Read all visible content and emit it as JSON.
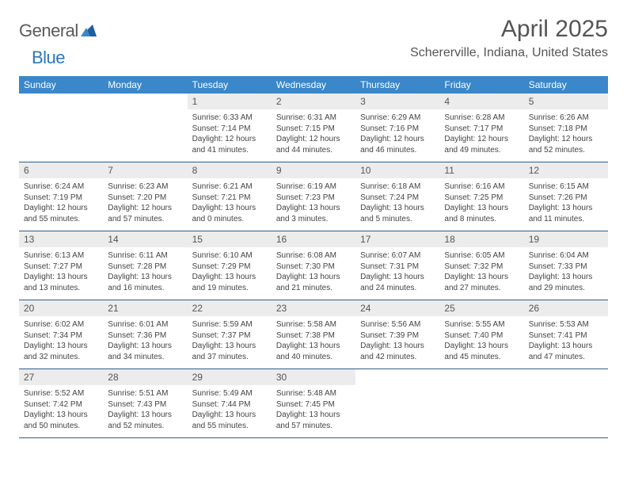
{
  "brand": {
    "word1": "General",
    "word2": "Blue",
    "word1_color": "#5a5a5a",
    "word2_color": "#2a77bb",
    "mark_color": "#1f5fa0"
  },
  "title": "April 2025",
  "location": "Schererville, Indiana, United States",
  "colors": {
    "header_bg": "#3a87c9",
    "header_text": "#ffffff",
    "daynum_bg": "#ececec",
    "daynum_text": "#555555",
    "body_text": "#444444",
    "rule": "#2f5f8a",
    "page_bg": "#ffffff"
  },
  "fonts": {
    "title_size": 30,
    "location_size": 16,
    "dayheader_size": 12,
    "daynum_size": 12,
    "cell_size": 10
  },
  "day_names": [
    "Sunday",
    "Monday",
    "Tuesday",
    "Wednesday",
    "Thursday",
    "Friday",
    "Saturday"
  ],
  "weeks": [
    [
      null,
      null,
      {
        "n": "1",
        "sunrise": "Sunrise: 6:33 AM",
        "sunset": "Sunset: 7:14 PM",
        "daylight": "Daylight: 12 hours and 41 minutes."
      },
      {
        "n": "2",
        "sunrise": "Sunrise: 6:31 AM",
        "sunset": "Sunset: 7:15 PM",
        "daylight": "Daylight: 12 hours and 44 minutes."
      },
      {
        "n": "3",
        "sunrise": "Sunrise: 6:29 AM",
        "sunset": "Sunset: 7:16 PM",
        "daylight": "Daylight: 12 hours and 46 minutes."
      },
      {
        "n": "4",
        "sunrise": "Sunrise: 6:28 AM",
        "sunset": "Sunset: 7:17 PM",
        "daylight": "Daylight: 12 hours and 49 minutes."
      },
      {
        "n": "5",
        "sunrise": "Sunrise: 6:26 AM",
        "sunset": "Sunset: 7:18 PM",
        "daylight": "Daylight: 12 hours and 52 minutes."
      }
    ],
    [
      {
        "n": "6",
        "sunrise": "Sunrise: 6:24 AM",
        "sunset": "Sunset: 7:19 PM",
        "daylight": "Daylight: 12 hours and 55 minutes."
      },
      {
        "n": "7",
        "sunrise": "Sunrise: 6:23 AM",
        "sunset": "Sunset: 7:20 PM",
        "daylight": "Daylight: 12 hours and 57 minutes."
      },
      {
        "n": "8",
        "sunrise": "Sunrise: 6:21 AM",
        "sunset": "Sunset: 7:21 PM",
        "daylight": "Daylight: 13 hours and 0 minutes."
      },
      {
        "n": "9",
        "sunrise": "Sunrise: 6:19 AM",
        "sunset": "Sunset: 7:23 PM",
        "daylight": "Daylight: 13 hours and 3 minutes."
      },
      {
        "n": "10",
        "sunrise": "Sunrise: 6:18 AM",
        "sunset": "Sunset: 7:24 PM",
        "daylight": "Daylight: 13 hours and 5 minutes."
      },
      {
        "n": "11",
        "sunrise": "Sunrise: 6:16 AM",
        "sunset": "Sunset: 7:25 PM",
        "daylight": "Daylight: 13 hours and 8 minutes."
      },
      {
        "n": "12",
        "sunrise": "Sunrise: 6:15 AM",
        "sunset": "Sunset: 7:26 PM",
        "daylight": "Daylight: 13 hours and 11 minutes."
      }
    ],
    [
      {
        "n": "13",
        "sunrise": "Sunrise: 6:13 AM",
        "sunset": "Sunset: 7:27 PM",
        "daylight": "Daylight: 13 hours and 13 minutes."
      },
      {
        "n": "14",
        "sunrise": "Sunrise: 6:11 AM",
        "sunset": "Sunset: 7:28 PM",
        "daylight": "Daylight: 13 hours and 16 minutes."
      },
      {
        "n": "15",
        "sunrise": "Sunrise: 6:10 AM",
        "sunset": "Sunset: 7:29 PM",
        "daylight": "Daylight: 13 hours and 19 minutes."
      },
      {
        "n": "16",
        "sunrise": "Sunrise: 6:08 AM",
        "sunset": "Sunset: 7:30 PM",
        "daylight": "Daylight: 13 hours and 21 minutes."
      },
      {
        "n": "17",
        "sunrise": "Sunrise: 6:07 AM",
        "sunset": "Sunset: 7:31 PM",
        "daylight": "Daylight: 13 hours and 24 minutes."
      },
      {
        "n": "18",
        "sunrise": "Sunrise: 6:05 AM",
        "sunset": "Sunset: 7:32 PM",
        "daylight": "Daylight: 13 hours and 27 minutes."
      },
      {
        "n": "19",
        "sunrise": "Sunrise: 6:04 AM",
        "sunset": "Sunset: 7:33 PM",
        "daylight": "Daylight: 13 hours and 29 minutes."
      }
    ],
    [
      {
        "n": "20",
        "sunrise": "Sunrise: 6:02 AM",
        "sunset": "Sunset: 7:34 PM",
        "daylight": "Daylight: 13 hours and 32 minutes."
      },
      {
        "n": "21",
        "sunrise": "Sunrise: 6:01 AM",
        "sunset": "Sunset: 7:36 PM",
        "daylight": "Daylight: 13 hours and 34 minutes."
      },
      {
        "n": "22",
        "sunrise": "Sunrise: 5:59 AM",
        "sunset": "Sunset: 7:37 PM",
        "daylight": "Daylight: 13 hours and 37 minutes."
      },
      {
        "n": "23",
        "sunrise": "Sunrise: 5:58 AM",
        "sunset": "Sunset: 7:38 PM",
        "daylight": "Daylight: 13 hours and 40 minutes."
      },
      {
        "n": "24",
        "sunrise": "Sunrise: 5:56 AM",
        "sunset": "Sunset: 7:39 PM",
        "daylight": "Daylight: 13 hours and 42 minutes."
      },
      {
        "n": "25",
        "sunrise": "Sunrise: 5:55 AM",
        "sunset": "Sunset: 7:40 PM",
        "daylight": "Daylight: 13 hours and 45 minutes."
      },
      {
        "n": "26",
        "sunrise": "Sunrise: 5:53 AM",
        "sunset": "Sunset: 7:41 PM",
        "daylight": "Daylight: 13 hours and 47 minutes."
      }
    ],
    [
      {
        "n": "27",
        "sunrise": "Sunrise: 5:52 AM",
        "sunset": "Sunset: 7:42 PM",
        "daylight": "Daylight: 13 hours and 50 minutes."
      },
      {
        "n": "28",
        "sunrise": "Sunrise: 5:51 AM",
        "sunset": "Sunset: 7:43 PM",
        "daylight": "Daylight: 13 hours and 52 minutes."
      },
      {
        "n": "29",
        "sunrise": "Sunrise: 5:49 AM",
        "sunset": "Sunset: 7:44 PM",
        "daylight": "Daylight: 13 hours and 55 minutes."
      },
      {
        "n": "30",
        "sunrise": "Sunrise: 5:48 AM",
        "sunset": "Sunset: 7:45 PM",
        "daylight": "Daylight: 13 hours and 57 minutes."
      },
      null,
      null,
      null
    ]
  ]
}
